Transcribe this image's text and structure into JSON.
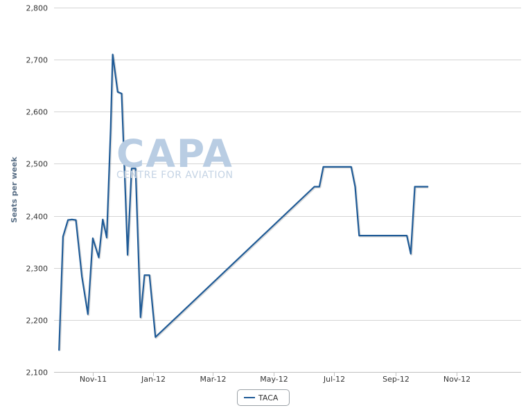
{
  "chart_data": {
    "type": "line",
    "ylabel": "Seats per week",
    "ylim": [
      2100,
      2800
    ],
    "yticks": [
      2100,
      2200,
      2300,
      2400,
      2500,
      2600,
      2700,
      2800
    ],
    "ytick_labels": [
      "2,100",
      "2,200",
      "2,300",
      "2,400",
      "2,500",
      "2,600",
      "2,700",
      "2,800"
    ],
    "xlim": [
      "2011-09-23",
      "2013-01-05"
    ],
    "xticks": [
      "2011-11-01",
      "2012-01-01",
      "2012-03-01",
      "2012-05-01",
      "2012-07-01",
      "2012-09-01",
      "2012-11-01"
    ],
    "xtick_labels": [
      "Nov-11",
      "Jan-12",
      "Mar-12",
      "May-12",
      "Jul-12",
      "Sep-12",
      "Nov-12"
    ],
    "grid": true,
    "legend_position": "bottom-center",
    "series": [
      {
        "name": "TACA",
        "color": "#1e5a96",
        "points": [
          [
            "2011-09-28",
            2142
          ],
          [
            "2011-10-02",
            2360
          ],
          [
            "2011-10-07",
            2392
          ],
          [
            "2011-10-11",
            2393
          ],
          [
            "2011-10-15",
            2392
          ],
          [
            "2011-10-21",
            2283
          ],
          [
            "2011-10-27",
            2211
          ],
          [
            "2011-11-01",
            2357
          ],
          [
            "2011-11-07",
            2320
          ],
          [
            "2011-11-11",
            2393
          ],
          [
            "2011-11-15",
            2358
          ],
          [
            "2011-11-19",
            2568
          ],
          [
            "2011-11-21",
            2710
          ],
          [
            "2011-11-26",
            2638
          ],
          [
            "2011-11-30",
            2635
          ],
          [
            "2011-12-04",
            2430
          ],
          [
            "2011-12-06",
            2325
          ],
          [
            "2011-12-10",
            2491
          ],
          [
            "2011-12-14",
            2491
          ],
          [
            "2011-12-19",
            2205
          ],
          [
            "2011-12-23",
            2286
          ],
          [
            "2011-12-28",
            2286
          ],
          [
            "2012-01-03",
            2167
          ],
          [
            "2012-06-11",
            2456
          ],
          [
            "2012-06-16",
            2456
          ],
          [
            "2012-06-20",
            2494
          ],
          [
            "2012-07-18",
            2494
          ],
          [
            "2012-07-22",
            2456
          ],
          [
            "2012-07-26",
            2362
          ],
          [
            "2012-09-12",
            2362
          ],
          [
            "2012-09-16",
            2327
          ],
          [
            "2012-09-20",
            2456
          ],
          [
            "2012-10-03",
            2456
          ]
        ]
      }
    ]
  },
  "watermark": {
    "big": "CAPA",
    "small": "CENTRE FOR AVIATION"
  },
  "legend": {
    "label": "TACA"
  }
}
